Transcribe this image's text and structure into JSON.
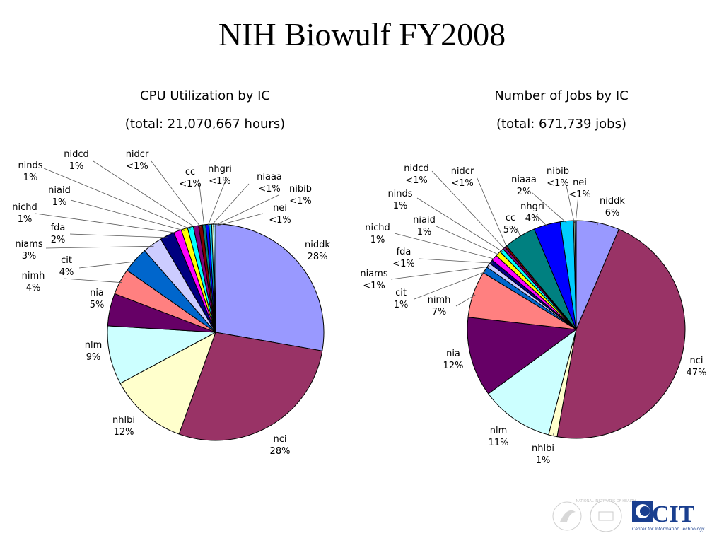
{
  "title": "NIH Biowulf FY2008",
  "chart_data": [
    {
      "type": "pie",
      "title": "CPU Utilization by IC",
      "subtitle": "(total: 21,070,667 hours)",
      "slices": [
        {
          "label": "niddk",
          "pct_label": "28%",
          "value": 28.5,
          "color": "#9999ff"
        },
        {
          "label": "nci",
          "pct_label": "28%",
          "value": 28.5,
          "color": "#993366"
        },
        {
          "label": "nhlbi",
          "pct_label": "12%",
          "value": 12,
          "color": "#ffffcc"
        },
        {
          "label": "nlm",
          "pct_label": "9%",
          "value": 9,
          "color": "#ccffff"
        },
        {
          "label": "nia",
          "pct_label": "5%",
          "value": 5,
          "color": "#660066"
        },
        {
          "label": "nimh",
          "pct_label": "4%",
          "value": 4,
          "color": "#ff8080"
        },
        {
          "label": "cit",
          "pct_label": "4%",
          "value": 4,
          "color": "#0066cc"
        },
        {
          "label": "niams",
          "pct_label": "3%",
          "value": 3,
          "color": "#ccccff"
        },
        {
          "label": "fda",
          "pct_label": "2%",
          "value": 2.2,
          "color": "#000080"
        },
        {
          "label": "nichd",
          "pct_label": "1%",
          "value": 1.2,
          "color": "#ff00ff"
        },
        {
          "label": "niaid",
          "pct_label": "1%",
          "value": 1,
          "color": "#ffff00"
        },
        {
          "label": "ninds",
          "pct_label": "1%",
          "value": 0.9,
          "color": "#00ffff"
        },
        {
          "label": "nidcd",
          "pct_label": "1%",
          "value": 0.8,
          "color": "#800080"
        },
        {
          "label": "nidcr",
          "pct_label": "<1%",
          "value": 0.6,
          "color": "#800000"
        },
        {
          "label": "cc",
          "pct_label": "<1%",
          "value": 0.5,
          "color": "#008080"
        },
        {
          "label": "nhgri",
          "pct_label": "<1%",
          "value": 0.5,
          "color": "#0000ff"
        },
        {
          "label": "niaaa",
          "pct_label": "<1%",
          "value": 0.4,
          "color": "#00ccff"
        },
        {
          "label": "nibib",
          "pct_label": "<1%",
          "value": 0.3,
          "color": "#ccffcc"
        },
        {
          "label": "nei",
          "pct_label": "<1%",
          "value": 0.3,
          "color": "#99ccff"
        }
      ]
    },
    {
      "type": "pie",
      "title": "Number of Jobs by IC",
      "subtitle": "(total: 671,739 jobs)",
      "slices": [
        {
          "label": "niddk",
          "pct_label": "6%",
          "value": 6.5,
          "color": "#9999ff"
        },
        {
          "label": "nci",
          "pct_label": "47%",
          "value": 47,
          "color": "#993366"
        },
        {
          "label": "nhlbi",
          "pct_label": "1%",
          "value": 1.3,
          "color": "#ffffcc"
        },
        {
          "label": "nlm",
          "pct_label": "11%",
          "value": 11,
          "color": "#ccffff"
        },
        {
          "label": "nia",
          "pct_label": "12%",
          "value": 12,
          "color": "#660066"
        },
        {
          "label": "nimh",
          "pct_label": "7%",
          "value": 7,
          "color": "#ff8080"
        },
        {
          "label": "cit",
          "pct_label": "1%",
          "value": 1,
          "color": "#0066cc"
        },
        {
          "label": "niams",
          "pct_label": "<1%",
          "value": 0.7,
          "color": "#ccccff"
        },
        {
          "label": "fda",
          "pct_label": "<1%",
          "value": 0.6,
          "color": "#000080"
        },
        {
          "label": "nichd",
          "pct_label": "1%",
          "value": 0.9,
          "color": "#ff00ff"
        },
        {
          "label": "niaid",
          "pct_label": "1%",
          "value": 0.8,
          "color": "#ffff00"
        },
        {
          "label": "ninds",
          "pct_label": "1%",
          "value": 0.6,
          "color": "#00ffff"
        },
        {
          "label": "nidcd",
          "pct_label": "<1%",
          "value": 0.4,
          "color": "#800080"
        },
        {
          "label": "nidcr",
          "pct_label": "<1%",
          "value": 0.3,
          "color": "#800000"
        },
        {
          "label": "cc",
          "pct_label": "5%",
          "value": 4.8,
          "color": "#008080"
        },
        {
          "label": "nhgri",
          "pct_label": "4%",
          "value": 4,
          "color": "#0000ff"
        },
        {
          "label": "niaaa",
          "pct_label": "2%",
          "value": 2,
          "color": "#00ccff"
        },
        {
          "label": "nibib",
          "pct_label": "<1%",
          "value": 0.2,
          "color": "#ccffcc"
        },
        {
          "label": "nei",
          "pct_label": "<1%",
          "value": 0.2,
          "color": "#99ccff"
        }
      ]
    }
  ],
  "footer": {
    "cit_logo_text": "CIT",
    "cit_tagline": "Center for Information Technology",
    "nih_seal_text": "NATIONAL INSTITUTES OF HEALTH"
  }
}
